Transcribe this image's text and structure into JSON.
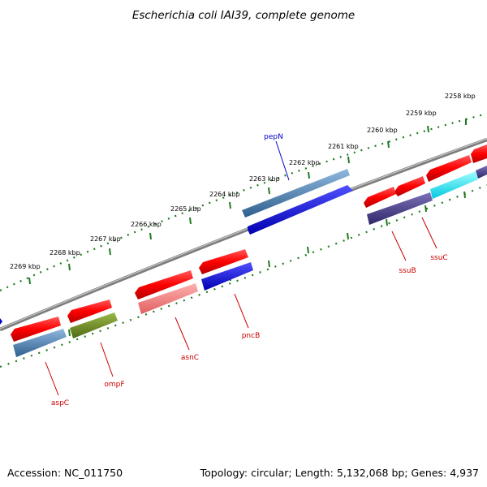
{
  "title": "Escherichia coli IAI39, complete genome",
  "footer": {
    "accession": "Accession: NC_011750",
    "summary": "Topology: circular; Length: 5,132,068 bp; Genes: 4,937"
  },
  "colors": {
    "backbone": "#7d7d7d",
    "tick": "#1f7a1f",
    "label_forward": "#0000cc",
    "label_reverse": "#cc0000"
  },
  "ruler": {
    "unit": "kbp",
    "labels": [
      "2258 kbp",
      "2259 kbp",
      "2260 kbp",
      "2261 kbp",
      "2262 kbp",
      "2263 kbp",
      "2264 kbp",
      "2265 kbp",
      "2266 kbp",
      "2267 kbp",
      "2268 kbp",
      "2269 kbp"
    ]
  },
  "gene_labels": [
    {
      "name": "pepN",
      "strand": "forward"
    },
    {
      "name": "ssuB",
      "strand": "reverse"
    },
    {
      "name": "ssuC",
      "strand": "reverse"
    },
    {
      "name": "asnC",
      "strand": "reverse"
    },
    {
      "name": "pncB",
      "strand": "reverse"
    },
    {
      "name": "aspC",
      "strand": "reverse"
    },
    {
      "name": "ompF",
      "strand": "reverse"
    }
  ]
}
